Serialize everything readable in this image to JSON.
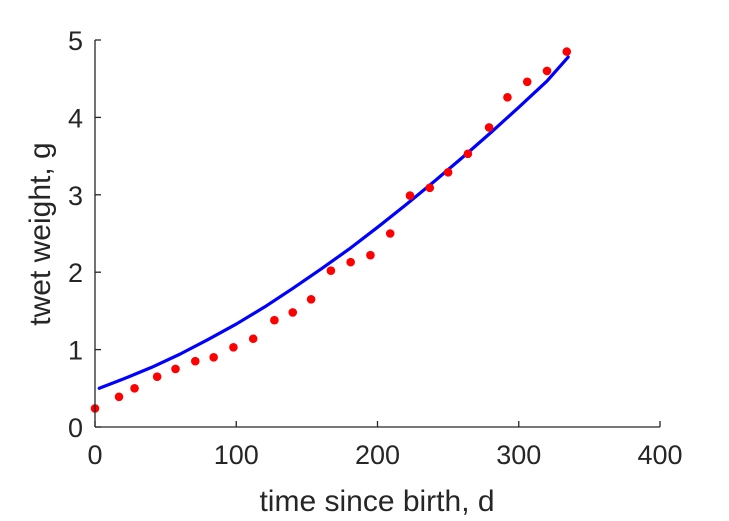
{
  "chart_data": {
    "type": "scatter",
    "xlabel": "time since birth, d",
    "ylabel": "twet weight, g",
    "xlim": [
      0,
      400
    ],
    "ylim": [
      0,
      5
    ],
    "xticks": [
      0,
      100,
      200,
      300,
      400
    ],
    "yticks": [
      0,
      1,
      2,
      3,
      4,
      5
    ],
    "grid": false,
    "colors": {
      "data": "#ff0000",
      "fit": "#0000ff",
      "axis": "#262626"
    },
    "series": [
      {
        "kind": "points",
        "x": [
          0,
          17,
          28,
          44,
          57,
          71,
          84,
          98,
          112,
          127,
          140,
          153,
          167,
          181,
          195,
          209,
          223,
          237,
          250,
          264,
          279,
          292,
          306,
          320,
          334
        ],
        "y": [
          0.24,
          0.39,
          0.5,
          0.65,
          0.75,
          0.85,
          0.9,
          1.03,
          1.14,
          1.38,
          1.48,
          1.65,
          2.02,
          2.13,
          2.22,
          2.5,
          2.99,
          3.09,
          3.29,
          3.53,
          3.87,
          4.26,
          4.46,
          4.6,
          4.85
        ]
      },
      {
        "kind": "line",
        "x": [
          3,
          20,
          40,
          60,
          80,
          100,
          120,
          140,
          160,
          180,
          200,
          220,
          240,
          260,
          280,
          300,
          320,
          335
        ],
        "y": [
          0.5,
          0.62,
          0.77,
          0.94,
          1.13,
          1.33,
          1.55,
          1.79,
          2.04,
          2.3,
          2.58,
          2.87,
          3.17,
          3.48,
          3.8,
          4.13,
          4.47,
          4.78
        ]
      }
    ]
  }
}
